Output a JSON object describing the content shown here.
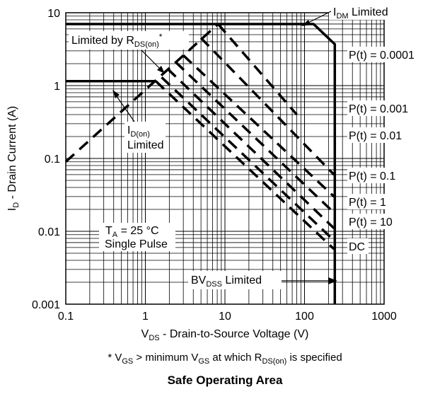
{
  "chart_data": {
    "type": "line",
    "title": "Safe Operating Area",
    "footnote": {
      "prefix": "* V",
      "sub1": "GS",
      "mid": " > minimum V",
      "sub2": "GS",
      "mid2": " at which R",
      "sub3": "DS(on)",
      "suffix": " is specified"
    },
    "xlabel": {
      "main": "V",
      "sub": "DS",
      "rest": " - Drain-to-Source Voltage (V)"
    },
    "ylabel": {
      "main": "I",
      "sub": "D",
      "rest": " - Drain Current (A)"
    },
    "x_scale": "log",
    "y_scale": "log",
    "xlim": [
      0.1,
      1000
    ],
    "ylim": [
      0.001,
      10
    ],
    "grid": true,
    "x_ticks": [
      {
        "value": 0.1,
        "label": "0.1"
      },
      {
        "value": 1,
        "label": "1"
      },
      {
        "value": 10,
        "label": "10"
      },
      {
        "value": 100,
        "label": "100"
      },
      {
        "value": 1000,
        "label": "1000"
      }
    ],
    "y_ticks": [
      {
        "value": 10,
        "label": "10"
      },
      {
        "value": 1,
        "label": "1"
      },
      {
        "value": 0.1,
        "label": "0.1"
      },
      {
        "value": 0.01,
        "label": "0.01"
      },
      {
        "value": 0.001,
        "label": "0.001"
      }
    ],
    "series": [
      {
        "name": "P(t) = 0.0001",
        "style": "dashed",
        "points": [
          [
            8.2,
            7.0
          ],
          [
            80,
            0.4
          ]
        ]
      },
      {
        "name": "P(t) = 0.001",
        "style": "dashed",
        "points": [
          [
            5.0,
            4.5
          ],
          [
            235,
            0.06
          ]
        ]
      },
      {
        "name": "P(t) = 0.01",
        "style": "dashed",
        "points": [
          [
            3.0,
            2.6
          ],
          [
            235,
            0.03
          ]
        ]
      },
      {
        "name": "P(t) = 0.1",
        "style": "dashed",
        "points": [
          [
            2.4,
            2.1
          ],
          [
            235,
            0.018
          ]
        ]
      },
      {
        "name": "P(t) = 1",
        "style": "dashed",
        "points": [
          [
            1.9,
            1.7
          ],
          [
            235,
            0.011
          ]
        ]
      },
      {
        "name": "P(t) = 10",
        "style": "dashed",
        "points": [
          [
            1.6,
            1.3
          ],
          [
            235,
            0.0075
          ]
        ]
      },
      {
        "name": "DC",
        "style": "dashed",
        "points": [
          [
            1.35,
            1.15
          ],
          [
            235,
            0.0057
          ]
        ]
      },
      {
        "name": "Limited by RDS(on)",
        "style": "dashed",
        "points": [
          [
            0.1,
            0.09
          ],
          [
            8.2,
            7.0
          ]
        ]
      },
      {
        "name": "IDM Limited",
        "style": "solid",
        "points": [
          [
            0.1,
            7.0
          ],
          [
            130,
            7.0
          ],
          [
            240,
            3.7
          ],
          [
            240,
            0.001
          ]
        ]
      },
      {
        "name": "ID(on) Limited",
        "style": "solid",
        "points": [
          [
            0.1,
            1.15
          ],
          [
            1.35,
            1.15
          ]
        ]
      }
    ],
    "annotations": {
      "idm": {
        "main": "I",
        "sub": "DM",
        "rest": " Limited"
      },
      "rds": {
        "main": "Limited by R",
        "sub": "DS(on)",
        "rest": "*"
      },
      "idon": {
        "main": "I",
        "sub": "D(on)",
        "line2": "Limited"
      },
      "ta": {
        "main": "T",
        "sub": "A",
        "rest": " = 25 °C",
        "line2": "Single Pulse"
      },
      "bv": {
        "main": "BV",
        "sub": "DSS",
        "rest": " Limited"
      },
      "p0001": "P(t) = 0.0001",
      "p001": "P(t) = 0.001",
      "p01": "P(t) = 0.01",
      "p1": "P(t) = 0.1",
      "p1s": "P(t) = 1",
      "p10": "P(t) = 10",
      "dc": "DC"
    }
  }
}
